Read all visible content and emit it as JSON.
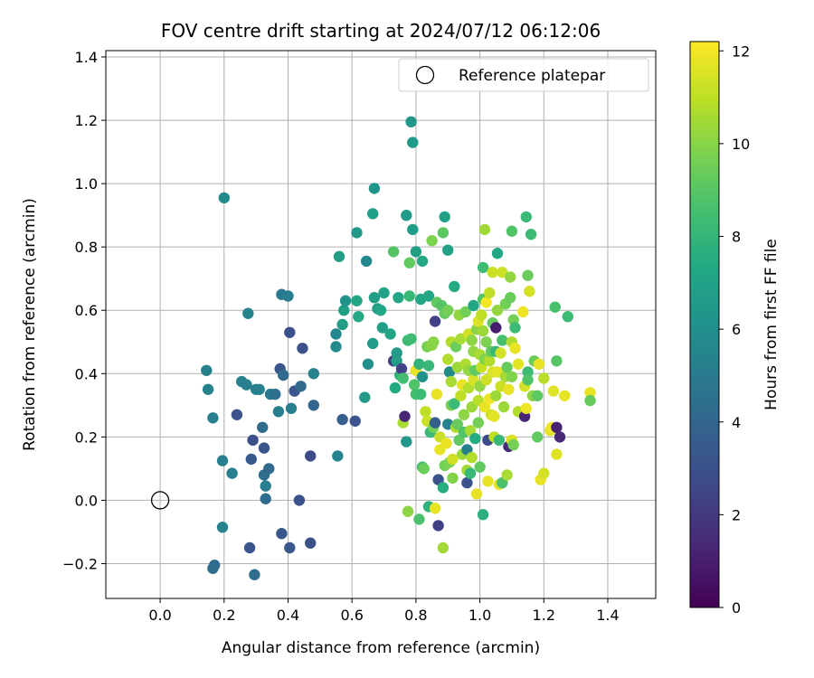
{
  "chart_data": {
    "type": "scatter",
    "title": "FOV centre drift starting at 2024/07/12 06:12:06",
    "xlabel": "Angular distance from reference (arcmin)",
    "ylabel": "Rotation from reference (arcmin)",
    "xlim": [
      -0.17,
      1.55
    ],
    "ylim": [
      -0.31,
      1.42
    ],
    "xticks": [
      0.0,
      0.2,
      0.4,
      0.6,
      0.8,
      1.0,
      1.2,
      1.4
    ],
    "yticks": [
      -0.2,
      0.0,
      0.2,
      0.4,
      0.6,
      0.8,
      1.0,
      1.2,
      1.4
    ],
    "grid": true,
    "legend": {
      "position": "top-right",
      "entries": [
        "Reference platepar"
      ]
    },
    "colorbar": {
      "label": "Hours from first FF file",
      "range": [
        0,
        12.2
      ],
      "ticks": [
        0,
        2,
        4,
        6,
        8,
        10,
        12
      ],
      "colormap": "viridis"
    },
    "reference_point": {
      "x": 0.0,
      "y": 0.0
    },
    "points": [
      [
        0.2,
        0.955,
        5.8
      ],
      [
        0.145,
        0.41,
        5.3
      ],
      [
        0.15,
        0.35,
        5.3
      ],
      [
        0.165,
        0.26,
        5.2
      ],
      [
        0.195,
        0.125,
        5.2
      ],
      [
        0.225,
        0.085,
        5.1
      ],
      [
        0.24,
        0.27,
        3.1
      ],
      [
        0.255,
        0.375,
        5.3
      ],
      [
        0.27,
        0.365,
        5.2
      ],
      [
        0.275,
        0.59,
        5.4
      ],
      [
        0.285,
        0.13,
        3.5
      ],
      [
        0.29,
        0.19,
        3.0
      ],
      [
        0.3,
        0.35,
        5.3
      ],
      [
        0.31,
        0.35,
        5.2
      ],
      [
        0.32,
        0.23,
        4.3
      ],
      [
        0.325,
        0.165,
        3.2
      ],
      [
        0.325,
        0.08,
        4.4
      ],
      [
        0.33,
        0.005,
        4.3
      ],
      [
        0.33,
        0.045,
        5.1
      ],
      [
        0.34,
        0.1,
        4.2
      ],
      [
        0.345,
        0.335,
        5.0
      ],
      [
        0.36,
        0.335,
        4.4
      ],
      [
        0.37,
        0.28,
        5.2
      ],
      [
        0.375,
        0.415,
        3.2
      ],
      [
        0.38,
        0.65,
        5.0
      ],
      [
        0.385,
        0.395,
        4.2
      ],
      [
        0.4,
        0.645,
        5.1
      ],
      [
        0.405,
        0.53,
        3.0
      ],
      [
        0.41,
        0.29,
        5.2
      ],
      [
        0.42,
        0.345,
        3.2
      ],
      [
        0.435,
        0.0,
        3.1
      ],
      [
        0.44,
        0.36,
        4.2
      ],
      [
        0.445,
        0.48,
        3.1
      ],
      [
        0.47,
        0.14,
        2.8
      ],
      [
        0.48,
        0.4,
        5.4
      ],
      [
        0.48,
        0.3,
        4.0
      ],
      [
        0.195,
        -0.085,
        5.4
      ],
      [
        0.17,
        -0.205,
        4.2
      ],
      [
        0.165,
        -0.215,
        4.3
      ],
      [
        0.28,
        -0.15,
        3.2
      ],
      [
        0.295,
        -0.235,
        4.3
      ],
      [
        0.38,
        -0.105,
        3.3
      ],
      [
        0.405,
        -0.15,
        3.3
      ],
      [
        0.47,
        -0.135,
        3.1
      ],
      [
        0.55,
        0.525,
        5.6
      ],
      [
        0.55,
        0.485,
        5.8
      ],
      [
        0.555,
        0.14,
        5.4
      ],
      [
        0.56,
        0.77,
        6.8
      ],
      [
        0.57,
        0.255,
        3.7
      ],
      [
        0.57,
        0.555,
        6.8
      ],
      [
        0.575,
        0.6,
        6.8
      ],
      [
        0.58,
        0.63,
        6.2
      ],
      [
        0.61,
        0.25,
        3.2
      ],
      [
        0.615,
        0.63,
        7.2
      ],
      [
        0.615,
        0.845,
        6.6
      ],
      [
        0.62,
        0.58,
        7.3
      ],
      [
        0.64,
        0.325,
        6.6
      ],
      [
        0.645,
        0.755,
        5.7
      ],
      [
        0.65,
        0.43,
        6.0
      ],
      [
        0.665,
        0.905,
        6.9
      ],
      [
        0.665,
        0.495,
        6.6
      ],
      [
        0.67,
        0.985,
        6.3
      ],
      [
        0.67,
        0.64,
        6.8
      ],
      [
        0.68,
        0.605,
        6.8
      ],
      [
        0.69,
        0.6,
        7.2
      ],
      [
        0.695,
        0.545,
        6.8
      ],
      [
        0.7,
        0.655,
        7.0
      ],
      [
        0.72,
        0.525,
        7.1
      ],
      [
        0.73,
        0.785,
        8.9
      ],
      [
        0.73,
        0.44,
        2.2
      ],
      [
        0.735,
        0.355,
        7.4
      ],
      [
        0.74,
        0.465,
        6.6
      ],
      [
        0.74,
        0.44,
        6.8
      ],
      [
        0.745,
        0.64,
        7.2
      ],
      [
        0.75,
        0.395,
        7.8
      ],
      [
        0.755,
        0.415,
        2.4
      ],
      [
        0.76,
        0.385,
        8.5
      ],
      [
        0.76,
        0.245,
        10.6
      ],
      [
        0.765,
        0.265,
        1.3
      ],
      [
        0.77,
        0.9,
        6.7
      ],
      [
        0.77,
        0.185,
        6.4
      ],
      [
        0.775,
        0.505,
        8.2
      ],
      [
        0.775,
        -0.035,
        10.1
      ],
      [
        0.78,
        0.75,
        9.2
      ],
      [
        0.78,
        0.645,
        8.1
      ],
      [
        0.785,
        0.51,
        8.4
      ],
      [
        0.785,
        1.195,
        6.4
      ],
      [
        0.79,
        1.13,
        6.5
      ],
      [
        0.79,
        0.855,
        6.7
      ],
      [
        0.795,
        0.365,
        8.8
      ],
      [
        0.8,
        0.785,
        6.8
      ],
      [
        0.8,
        0.41,
        11.8
      ],
      [
        0.8,
        0.335,
        8.5
      ],
      [
        0.81,
        0.43,
        7.9
      ],
      [
        0.81,
        -0.06,
        8.7
      ],
      [
        0.815,
        0.635,
        7.2
      ],
      [
        0.815,
        0.335,
        8.3
      ],
      [
        0.82,
        0.755,
        7.3
      ],
      [
        0.82,
        0.39,
        6.1
      ],
      [
        0.82,
        0.105,
        8.5
      ],
      [
        0.825,
        0.1,
        9.4
      ],
      [
        0.83,
        0.28,
        11.0
      ],
      [
        0.835,
        0.25,
        11.2
      ],
      [
        0.835,
        0.485,
        9.6
      ],
      [
        0.84,
        0.645,
        7.2
      ],
      [
        0.84,
        0.425,
        8.1
      ],
      [
        0.84,
        -0.02,
        7.8
      ],
      [
        0.845,
        0.215,
        8.2
      ],
      [
        0.85,
        0.82,
        9.8
      ],
      [
        0.85,
        0.49,
        10.1
      ],
      [
        0.855,
        0.23,
        9.6
      ],
      [
        0.855,
        0.5,
        10.0
      ],
      [
        0.86,
        -0.025,
        11.8
      ],
      [
        0.86,
        0.565,
        2.4
      ],
      [
        0.86,
        0.245,
        3.7
      ],
      [
        0.865,
        0.625,
        9.2
      ],
      [
        0.865,
        0.335,
        11.8
      ],
      [
        0.87,
        0.065,
        3.1
      ],
      [
        0.87,
        -0.08,
        2.3
      ],
      [
        0.875,
        0.2,
        11.2
      ],
      [
        0.875,
        0.16,
        11.8
      ],
      [
        0.88,
        0.615,
        8.9
      ],
      [
        0.885,
        0.845,
        9.1
      ],
      [
        0.885,
        -0.15,
        10.5
      ],
      [
        0.885,
        0.04,
        7.6
      ],
      [
        0.89,
        0.895,
        6.9
      ],
      [
        0.89,
        0.59,
        9.3
      ],
      [
        0.89,
        0.11,
        9.6
      ],
      [
        0.895,
        0.18,
        11.8
      ],
      [
        0.9,
        0.79,
        7.0
      ],
      [
        0.9,
        0.6,
        9.6
      ],
      [
        0.9,
        0.445,
        10.8
      ],
      [
        0.9,
        0.24,
        5.4
      ],
      [
        0.905,
        0.12,
        9.8
      ],
      [
        0.905,
        0.405,
        5.8
      ],
      [
        0.91,
        0.5,
        10.8
      ],
      [
        0.91,
        0.375,
        10.6
      ],
      [
        0.91,
        0.3,
        9.8
      ],
      [
        0.915,
        0.13,
        11.3
      ],
      [
        0.915,
        0.07,
        9.9
      ],
      [
        0.92,
        0.675,
        7.4
      ],
      [
        0.92,
        0.305,
        8.2
      ],
      [
        0.925,
        0.23,
        10.7
      ],
      [
        0.925,
        0.485,
        9.4
      ],
      [
        0.93,
        0.24,
        9.3
      ],
      [
        0.93,
        0.42,
        10.4
      ],
      [
        0.935,
        0.585,
        10.2
      ],
      [
        0.935,
        0.19,
        9.2
      ],
      [
        0.94,
        0.51,
        10.6
      ],
      [
        0.94,
        0.33,
        11.0
      ],
      [
        0.945,
        0.365,
        11.8
      ],
      [
        0.945,
        0.145,
        10.4
      ],
      [
        0.95,
        0.215,
        8.8
      ],
      [
        0.95,
        0.27,
        10.1
      ],
      [
        0.955,
        0.595,
        9.6
      ],
      [
        0.955,
        0.43,
        10.7
      ],
      [
        0.96,
        0.055,
        3.1
      ],
      [
        0.96,
        0.095,
        10.5
      ],
      [
        0.96,
        0.16,
        5.3
      ],
      [
        0.965,
        0.525,
        11.3
      ],
      [
        0.965,
        0.41,
        10.2
      ],
      [
        0.965,
        0.355,
        10.8
      ],
      [
        0.97,
        0.22,
        10.6
      ],
      [
        0.97,
        0.085,
        8.1
      ],
      [
        0.975,
        0.505,
        10.1
      ],
      [
        0.975,
        0.295,
        10.4
      ],
      [
        0.975,
        0.135,
        10.8
      ],
      [
        0.98,
        0.615,
        7.2
      ],
      [
        0.98,
        0.47,
        10.2
      ],
      [
        0.98,
        0.38,
        11.5
      ],
      [
        0.985,
        0.195,
        7.5
      ],
      [
        0.985,
        0.41,
        9.2
      ],
      [
        0.99,
        0.02,
        11.8
      ],
      [
        0.99,
        0.54,
        10.0
      ],
      [
        0.995,
        0.565,
        11.6
      ],
      [
        0.995,
        0.315,
        10.9
      ],
      [
        0.995,
        0.245,
        9.6
      ],
      [
        1.0,
        0.46,
        10.6
      ],
      [
        1.0,
        0.36,
        10.2
      ],
      [
        1.0,
        0.105,
        9.2
      ],
      [
        1.005,
        0.585,
        11.0
      ],
      [
        1.005,
        0.42,
        11.1
      ],
      [
        1.01,
        0.735,
        8.4
      ],
      [
        1.01,
        0.635,
        8.8
      ],
      [
        1.01,
        0.535,
        10.4
      ],
      [
        1.01,
        -0.045,
        7.7
      ],
      [
        1.015,
        0.855,
        10.5
      ],
      [
        1.015,
        0.445,
        9.9
      ],
      [
        1.015,
        0.295,
        11.8
      ],
      [
        1.02,
        0.625,
        12.0
      ],
      [
        1.02,
        0.5,
        9.8
      ],
      [
        1.02,
        0.38,
        11.3
      ],
      [
        1.025,
        0.19,
        2.8
      ],
      [
        1.025,
        0.06,
        11.8
      ],
      [
        1.03,
        0.655,
        11.0
      ],
      [
        1.03,
        0.44,
        10.8
      ],
      [
        1.03,
        0.32,
        11.9
      ],
      [
        1.035,
        0.27,
        11.4
      ],
      [
        1.035,
        0.47,
        9.2
      ],
      [
        1.04,
        0.72,
        11.2
      ],
      [
        1.04,
        0.56,
        9.2
      ],
      [
        1.04,
        0.405,
        11.5
      ],
      [
        1.045,
        0.2,
        11.0
      ],
      [
        1.045,
        0.265,
        11.7
      ],
      [
        1.05,
        0.545,
        1.0
      ],
      [
        1.05,
        0.47,
        8.1
      ],
      [
        1.05,
        0.33,
        10.4
      ],
      [
        1.055,
        0.78,
        7.3
      ],
      [
        1.055,
        0.6,
        10.2
      ],
      [
        1.055,
        0.405,
        11.7
      ],
      [
        1.06,
        0.19,
        8.1
      ],
      [
        1.06,
        0.05,
        11.8
      ],
      [
        1.065,
        0.465,
        11.4
      ],
      [
        1.065,
        0.36,
        11.2
      ],
      [
        1.07,
        0.72,
        11.3
      ],
      [
        1.07,
        0.505,
        8.6
      ],
      [
        1.07,
        0.055,
        8.7
      ],
      [
        1.075,
        0.295,
        10.4
      ],
      [
        1.08,
        0.62,
        9.6
      ],
      [
        1.08,
        0.39,
        10.6
      ],
      [
        1.085,
        0.42,
        9.3
      ],
      [
        1.085,
        0.08,
        10.6
      ],
      [
        1.09,
        0.17,
        1.5
      ],
      [
        1.09,
        0.35,
        11.8
      ],
      [
        1.095,
        0.705,
        10.2
      ],
      [
        1.095,
        0.64,
        9.4
      ],
      [
        1.1,
        0.5,
        10.7
      ],
      [
        1.1,
        0.39,
        9.9
      ],
      [
        1.1,
        0.19,
        11.5
      ],
      [
        1.1,
        0.85,
        8.8
      ],
      [
        1.105,
        0.57,
        9.6
      ],
      [
        1.105,
        0.175,
        9.6
      ],
      [
        1.11,
        0.48,
        11.8
      ],
      [
        1.11,
        0.545,
        8.3
      ],
      [
        1.12,
        0.28,
        10.8
      ],
      [
        1.12,
        0.43,
        11.7
      ],
      [
        1.135,
        0.595,
        11.9
      ],
      [
        1.14,
        0.265,
        1.3
      ],
      [
        1.14,
        0.36,
        11.4
      ],
      [
        1.145,
        0.895,
        8.2
      ],
      [
        1.145,
        0.29,
        11.9
      ],
      [
        1.15,
        0.405,
        8.3
      ],
      [
        1.15,
        0.71,
        9.4
      ],
      [
        1.15,
        0.38,
        8.8
      ],
      [
        1.155,
        0.66,
        11.4
      ],
      [
        1.16,
        0.84,
        8.3
      ],
      [
        1.165,
        0.33,
        10.1
      ],
      [
        1.17,
        0.44,
        9.4
      ],
      [
        1.18,
        0.33,
        9.1
      ],
      [
        1.18,
        0.2,
        9.2
      ],
      [
        1.185,
        0.43,
        11.8
      ],
      [
        1.19,
        0.065,
        11.8
      ],
      [
        1.2,
        0.085,
        11.4
      ],
      [
        1.2,
        0.385,
        10.9
      ],
      [
        1.22,
        0.22,
        11.6
      ],
      [
        1.225,
        0.23,
        11.9
      ],
      [
        1.23,
        0.345,
        11.6
      ],
      [
        1.235,
        0.61,
        8.6
      ],
      [
        1.24,
        0.23,
        1.2
      ],
      [
        1.24,
        0.145,
        11.6
      ],
      [
        1.24,
        0.44,
        8.9
      ],
      [
        1.25,
        0.2,
        1.4
      ],
      [
        1.265,
        0.33,
        11.8
      ],
      [
        1.275,
        0.58,
        8.3
      ],
      [
        1.345,
        0.34,
        11.8
      ],
      [
        1.345,
        0.315,
        9.3
      ]
    ]
  }
}
